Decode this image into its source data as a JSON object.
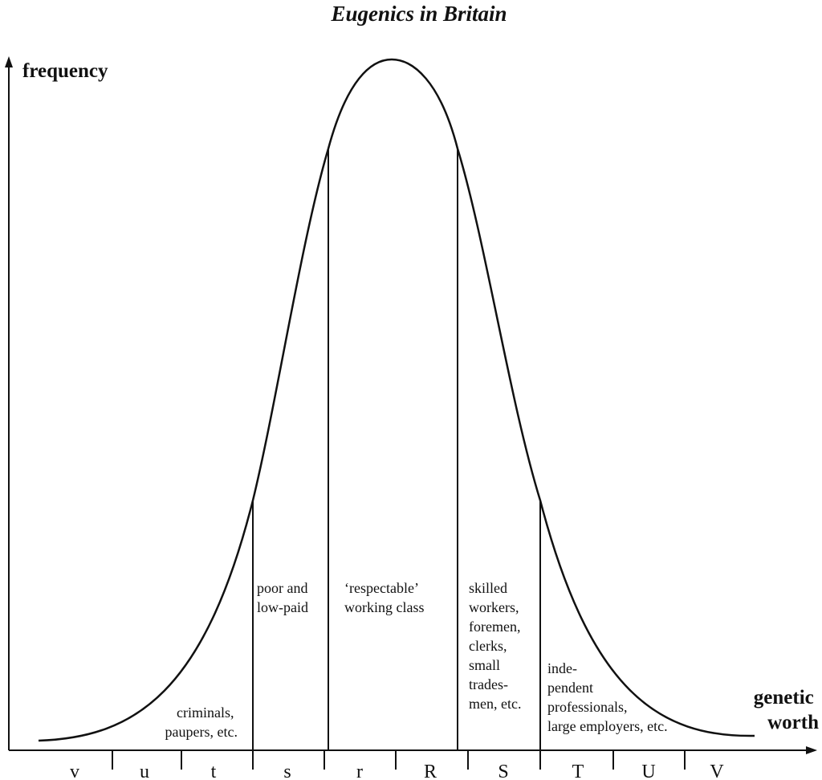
{
  "title": "Eugenics in Britain",
  "y_axis_label": "frequency",
  "x_axis_label_lines": [
    "genetic",
    "worth"
  ],
  "regions": [
    {
      "key": "criminals",
      "lines": [
        "criminals,",
        "paupers, etc."
      ]
    },
    {
      "key": "poor",
      "lines": [
        "poor and",
        "low-paid"
      ]
    },
    {
      "key": "respectable",
      "lines": [
        "‘respectable’",
        "working class"
      ]
    },
    {
      "key": "skilled",
      "lines": [
        "skilled",
        "workers,",
        "foremen,",
        "clerks,",
        "small",
        "trades-",
        "men, etc."
      ]
    },
    {
      "key": "professionals",
      "lines": [
        "inde-",
        "pendent",
        "professionals,",
        "large employers, etc."
      ]
    }
  ],
  "bands": [
    "v",
    "u",
    "t",
    "s",
    "r",
    "R",
    "S",
    "T",
    "U",
    "V"
  ]
}
